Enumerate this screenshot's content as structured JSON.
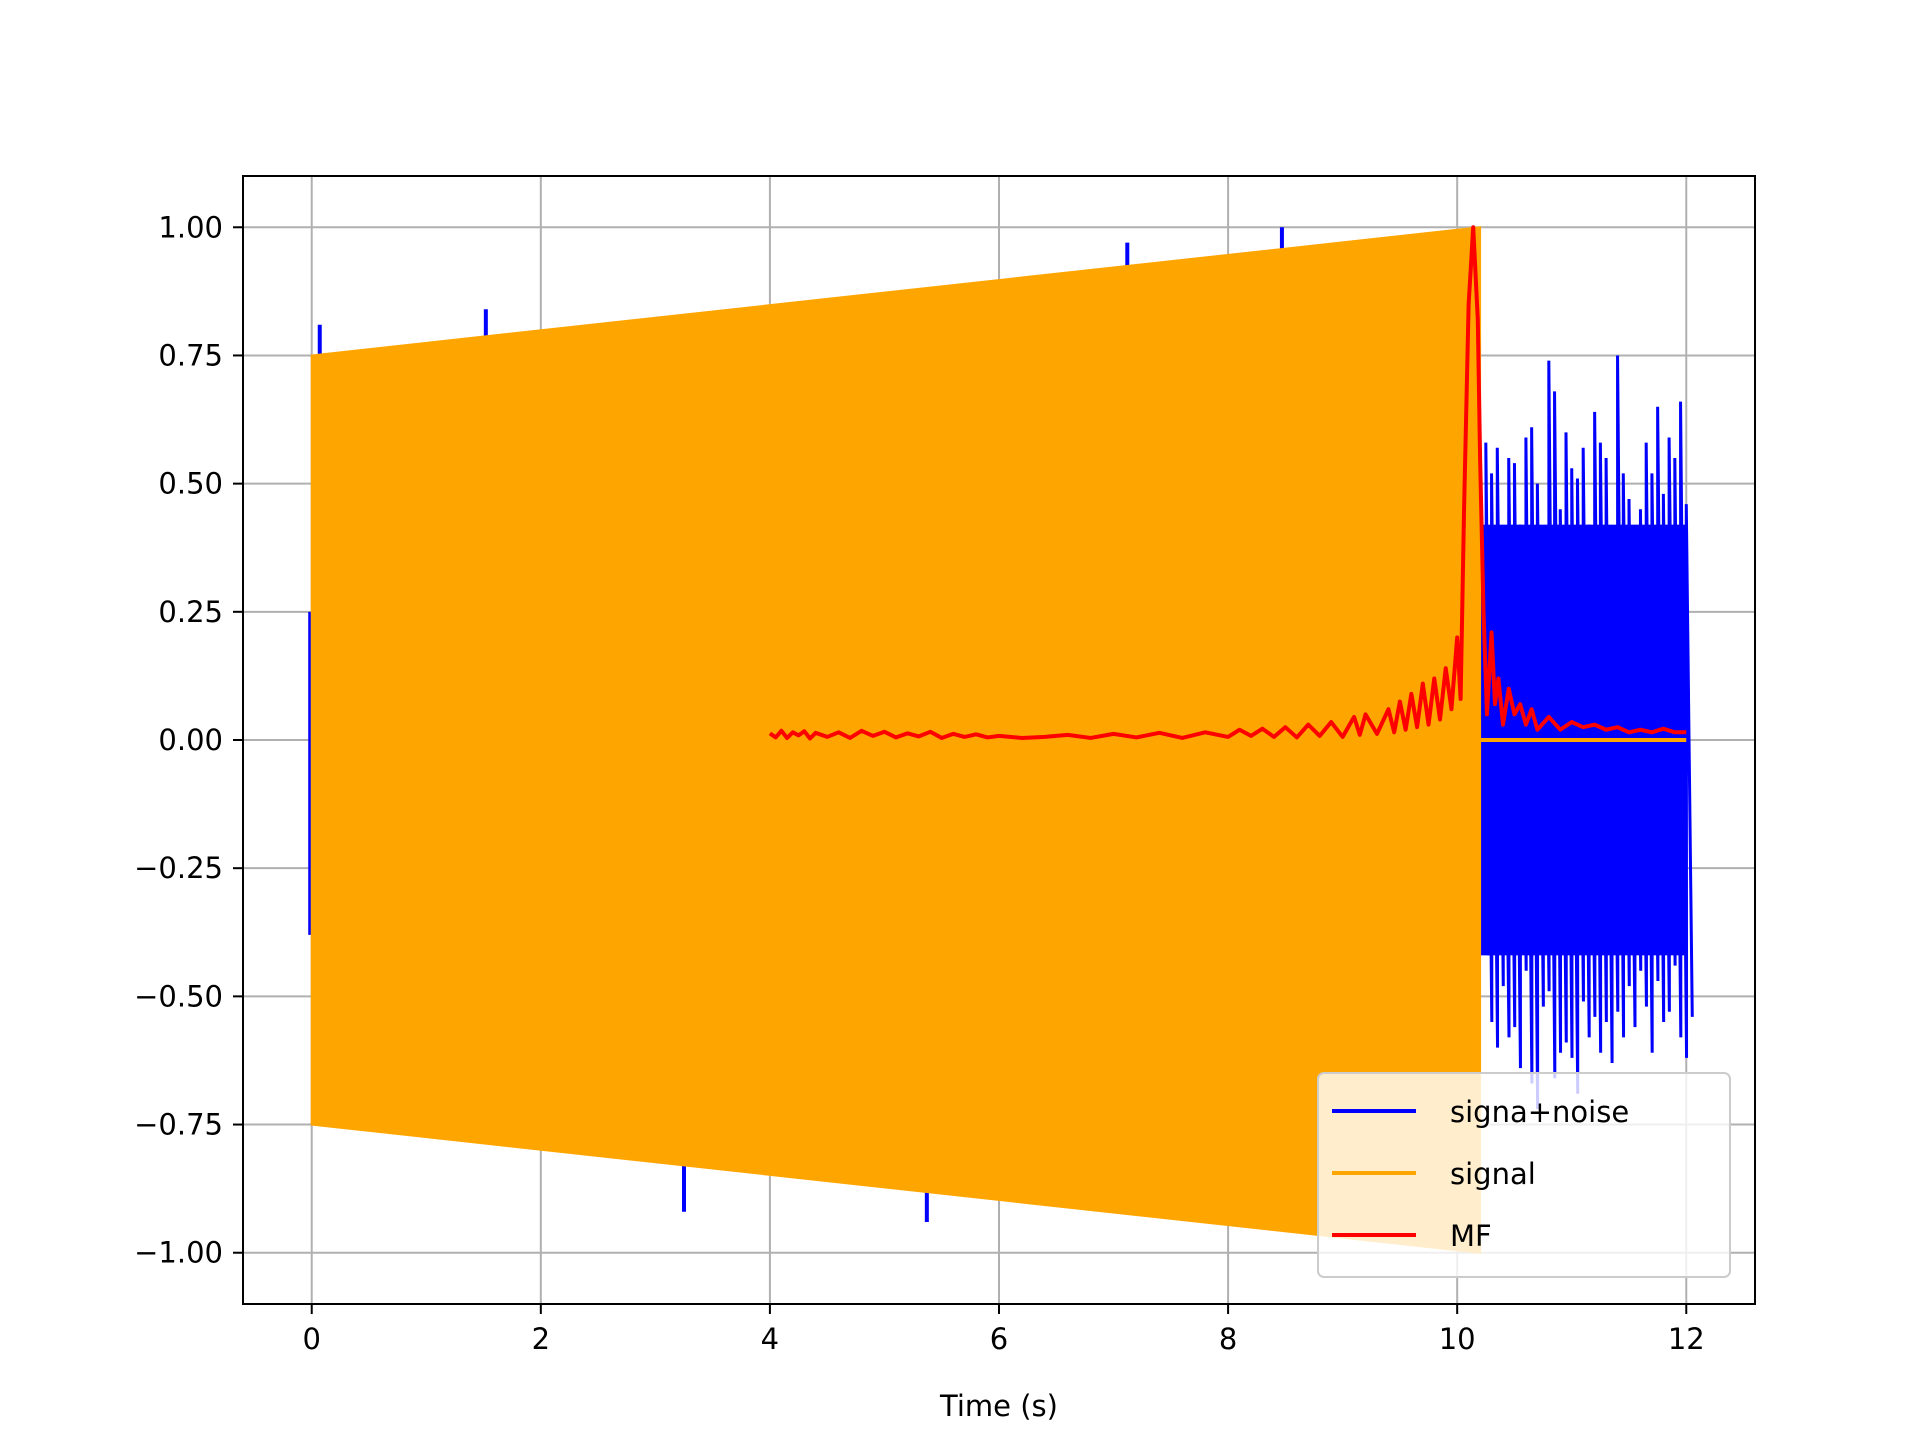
{
  "chart_data": {
    "type": "line",
    "title": "",
    "xlabel": "Time (s)",
    "ylabel": "",
    "xlim": [
      -0.6,
      12.6
    ],
    "ylim": [
      -1.1,
      1.1
    ],
    "xticks": [
      0,
      2,
      4,
      6,
      8,
      10,
      12
    ],
    "xtick_labels": [
      "0",
      "2",
      "4",
      "6",
      "8",
      "10",
      "12"
    ],
    "yticks": [
      1.0,
      0.75,
      0.5,
      0.25,
      0.0,
      -0.25,
      -0.5,
      -0.75,
      -1.0
    ],
    "ytick_labels": [
      "1.00",
      "0.75",
      "0.50",
      "0.25",
      "0.00",
      "−0.25",
      "−0.50",
      "−0.75",
      "−1.00"
    ],
    "grid": true,
    "legend_position": "bottom-right",
    "series": [
      {
        "name": "signa+noise",
        "color": "#0000ff",
        "noise_x": [
          10.22,
          10.25,
          10.3,
          10.35,
          10.4,
          10.45,
          10.5,
          10.55,
          10.6,
          10.65,
          10.7,
          10.75,
          10.8,
          10.85,
          10.9,
          10.95,
          11.0,
          11.05,
          11.1,
          11.15,
          11.2,
          11.25,
          11.3,
          11.35,
          11.4,
          11.45,
          11.5,
          11.55,
          11.6,
          11.65,
          11.7,
          11.75,
          11.8,
          11.85,
          11.9,
          11.95,
          12.0
        ],
        "noise_upper": [
          0.35,
          0.58,
          0.52,
          0.57,
          0.41,
          0.55,
          0.54,
          0.42,
          0.59,
          0.61,
          0.5,
          0.37,
          0.74,
          0.68,
          0.45,
          0.6,
          0.53,
          0.51,
          0.57,
          0.42,
          0.64,
          0.58,
          0.55,
          0.41,
          0.75,
          0.52,
          0.47,
          0.38,
          0.45,
          0.58,
          0.52,
          0.65,
          0.48,
          0.59,
          0.55,
          0.66,
          0.46
        ],
        "noise_lower": [
          -0.42,
          -0.55,
          -0.6,
          -0.48,
          -0.58,
          -0.56,
          -0.64,
          -0.45,
          -0.67,
          -0.72,
          -0.52,
          -0.49,
          -0.66,
          -0.61,
          -0.59,
          -0.62,
          -0.69,
          -0.51,
          -0.58,
          -0.54,
          -0.61,
          -0.55,
          -0.63,
          -0.53,
          -0.58,
          -0.48,
          -0.56,
          -0.45,
          -0.52,
          -0.61,
          -0.47,
          -0.55,
          -0.53,
          -0.44,
          -0.58,
          -0.62,
          -0.54
        ],
        "spikes": [
          {
            "x": 0.07,
            "y": 0.81
          },
          {
            "x": 1.52,
            "y": 0.84
          },
          {
            "x": 2.95,
            "y": 0.81
          },
          {
            "x": 3.25,
            "y": -0.92
          },
          {
            "x": 5.35,
            "y": 0.87
          },
          {
            "x": 5.37,
            "y": -0.94
          },
          {
            "x": 7.12,
            "y": 0.97
          },
          {
            "x": 8.25,
            "y": -0.94
          },
          {
            "x": 8.38,
            "y": -0.94
          },
          {
            "x": 8.47,
            "y": 1.0
          }
        ]
      },
      {
        "name": "signal",
        "color": "#ffa500",
        "x_start": 0.0,
        "x_end": 10.2,
        "amplitude_start": 0.75,
        "amplitude_end": 1.0,
        "tail_x": [
          10.2,
          12.0
        ],
        "tail_y": 0.0
      },
      {
        "name": "MF",
        "color": "#ff0000",
        "x": [
          4.0,
          4.05,
          4.1,
          4.15,
          4.2,
          4.25,
          4.3,
          4.35,
          4.4,
          4.45,
          4.5,
          4.6,
          4.7,
          4.8,
          4.9,
          5.0,
          5.1,
          5.2,
          5.3,
          5.4,
          5.5,
          5.6,
          5.7,
          5.8,
          5.9,
          6.0,
          6.2,
          6.4,
          6.6,
          6.8,
          7.0,
          7.2,
          7.4,
          7.6,
          7.8,
          8.0,
          8.1,
          8.2,
          8.3,
          8.4,
          8.5,
          8.6,
          8.7,
          8.8,
          8.9,
          9.0,
          9.1,
          9.15,
          9.2,
          9.3,
          9.4,
          9.45,
          9.5,
          9.55,
          9.6,
          9.65,
          9.7,
          9.75,
          9.8,
          9.85,
          9.9,
          9.95,
          10.0,
          10.03,
          10.06,
          10.1,
          10.14,
          10.18,
          10.2,
          10.23,
          10.26,
          10.3,
          10.33,
          10.36,
          10.4,
          10.45,
          10.5,
          10.55,
          10.6,
          10.65,
          10.7,
          10.8,
          10.9,
          11.0,
          11.1,
          11.2,
          11.3,
          11.4,
          11.5,
          11.6,
          11.7,
          11.8,
          11.9,
          12.0
        ],
        "y": [
          0.013,
          0.005,
          0.018,
          0.004,
          0.015,
          0.009,
          0.017,
          0.003,
          0.014,
          0.01,
          0.006,
          0.015,
          0.004,
          0.018,
          0.008,
          0.016,
          0.005,
          0.013,
          0.007,
          0.016,
          0.004,
          0.012,
          0.006,
          0.011,
          0.005,
          0.008,
          0.004,
          0.006,
          0.01,
          0.004,
          0.012,
          0.005,
          0.014,
          0.004,
          0.015,
          0.006,
          0.02,
          0.008,
          0.022,
          0.006,
          0.025,
          0.005,
          0.03,
          0.008,
          0.035,
          0.006,
          0.045,
          0.01,
          0.05,
          0.012,
          0.06,
          0.015,
          0.075,
          0.02,
          0.09,
          0.025,
          0.11,
          0.03,
          0.12,
          0.04,
          0.14,
          0.06,
          0.2,
          0.08,
          0.45,
          0.85,
          1.0,
          0.82,
          0.55,
          0.25,
          0.05,
          0.21,
          0.07,
          0.12,
          0.03,
          0.1,
          0.05,
          0.07,
          0.03,
          0.06,
          0.02,
          0.045,
          0.02,
          0.035,
          0.025,
          0.03,
          0.02,
          0.025,
          0.015,
          0.02,
          0.015,
          0.022,
          0.015,
          0.015
        ]
      }
    ]
  }
}
